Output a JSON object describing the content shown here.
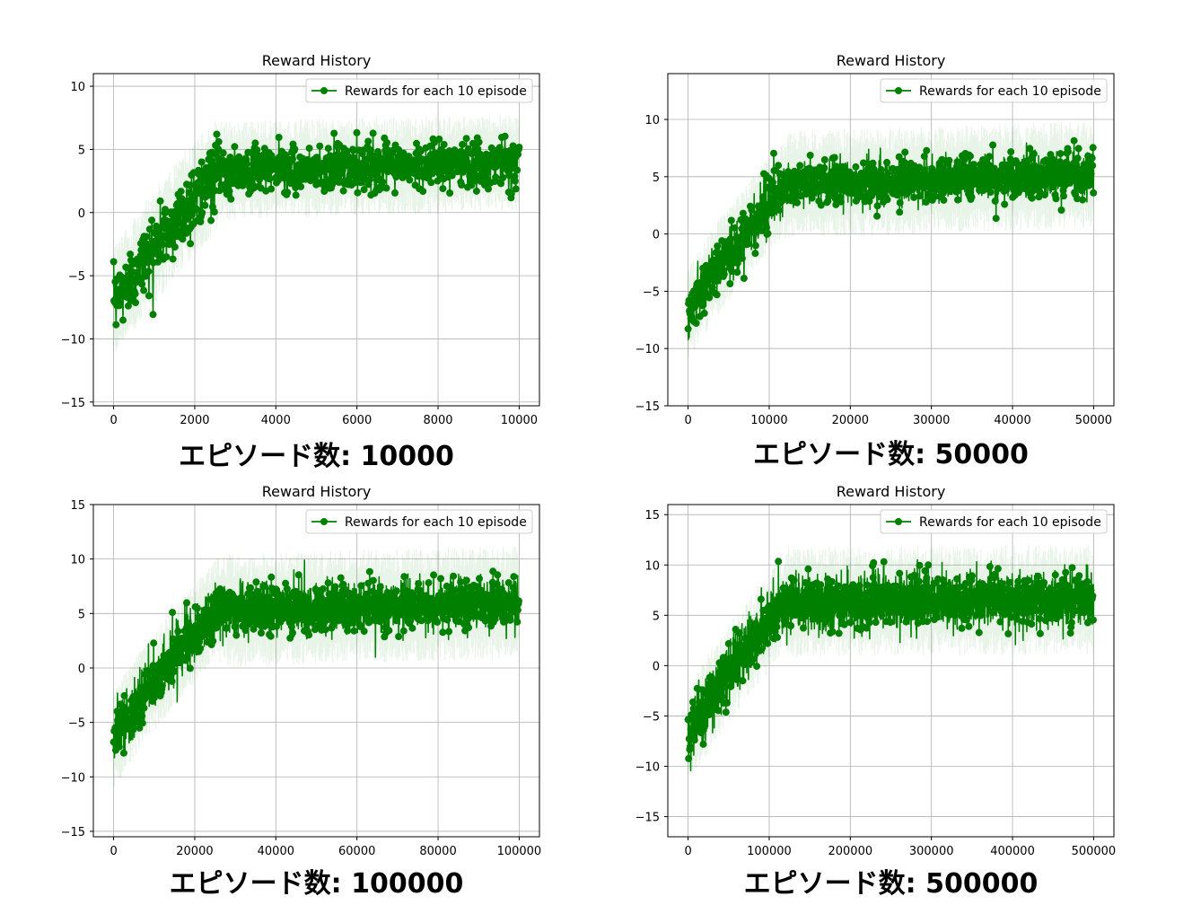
{
  "chart_data": [
    {
      "type": "line",
      "title": "Reward History",
      "caption": "エピソード数: 10000",
      "legend": "Rewards for each 10 episode",
      "legend_position": "upper-right",
      "grid": true,
      "xlim": [
        -500,
        10500
      ],
      "ylim": [
        -15.3,
        11.0
      ],
      "xticks": [
        0,
        2000,
        4000,
        6000,
        8000,
        10000
      ],
      "xtick_labels": [
        "0",
        "2000",
        "4000",
        "6000",
        "8000",
        "10000"
      ],
      "yticks": [
        -15,
        -10,
        -5,
        0,
        5,
        10
      ],
      "ytick_labels": [
        "−15",
        "−10",
        "−5",
        "0",
        "5",
        "10"
      ],
      "x_end": 10000,
      "n_points": 1000,
      "plateau_x": 2600,
      "curve": {
        "y_start": -7.5,
        "y_plateau": 3.3,
        "y_final": 4.0,
        "noise_early": 1.3,
        "noise_late": 0.9
      },
      "band": {
        "halfwidth_early": 3.5,
        "halfwidth_late": 3.0
      },
      "annotations": {
        "max_approx": 6.6,
        "min_approx": -9.2
      }
    },
    {
      "type": "line",
      "title": "Reward History",
      "caption": "エピソード数: 50000",
      "legend": "Rewards for each 10 episode",
      "legend_position": "upper-right",
      "grid": true,
      "xlim": [
        -2500,
        52500
      ],
      "ylim": [
        -15.0,
        14.0
      ],
      "xticks": [
        0,
        10000,
        20000,
        30000,
        40000,
        50000
      ],
      "xtick_labels": [
        "0",
        "10000",
        "20000",
        "30000",
        "40000",
        "50000"
      ],
      "yticks": [
        -15,
        -10,
        -5,
        0,
        5,
        10
      ],
      "ytick_labels": [
        "−15",
        "−10",
        "−5",
        "0",
        "5",
        "10"
      ],
      "x_end": 50000,
      "n_points": 1800,
      "plateau_x": 12000,
      "curve": {
        "y_start": -7.2,
        "y_plateau": 4.3,
        "y_final": 5.2,
        "noise_early": 1.2,
        "noise_late": 1.0
      },
      "band": {
        "halfwidth_early": 3.2,
        "halfwidth_late": 3.6
      },
      "annotations": {
        "max_approx": 8.8,
        "min_approx": -9.8
      }
    },
    {
      "type": "line",
      "title": "Reward History",
      "caption": "エピソード数: 100000",
      "legend": "Rewards for each 10 episode",
      "legend_position": "upper-right",
      "grid": true,
      "xlim": [
        -5000,
        105000
      ],
      "ylim": [
        -15.5,
        15.0
      ],
      "xticks": [
        0,
        20000,
        40000,
        60000,
        80000,
        100000
      ],
      "xtick_labels": [
        "0",
        "20000",
        "40000",
        "60000",
        "80000",
        "100000"
      ],
      "yticks": [
        -15,
        -10,
        -5,
        0,
        5,
        10,
        15
      ],
      "ytick_labels": [
        "−15",
        "−10",
        "−5",
        "0",
        "5",
        "10",
        "15"
      ],
      "x_end": 100000,
      "n_points": 2400,
      "plateau_x": 25000,
      "curve": {
        "y_start": -6.8,
        "y_plateau": 5.3,
        "y_final": 6.0,
        "noise_early": 1.3,
        "noise_late": 1.1
      },
      "band": {
        "halfwidth_early": 3.5,
        "halfwidth_late": 4.0
      },
      "annotations": {
        "max_approx": 9.9,
        "min_approx": -10.2
      }
    },
    {
      "type": "line",
      "title": "Reward History",
      "caption": "エピソード数: 500000",
      "legend": "Rewards for each 10 episode",
      "legend_position": "upper-right",
      "grid": true,
      "xlim": [
        -25000,
        525000
      ],
      "ylim": [
        -17.0,
        16.0
      ],
      "xticks": [
        0,
        100000,
        200000,
        300000,
        400000,
        500000
      ],
      "xtick_labels": [
        "0",
        "100000",
        "200000",
        "300000",
        "400000",
        "500000"
      ],
      "yticks": [
        -15,
        -10,
        -5,
        0,
        5,
        10,
        15
      ],
      "ytick_labels": [
        "−15",
        "−10",
        "−5",
        "0",
        "5",
        "10",
        "15"
      ],
      "x_end": 500000,
      "n_points": 3000,
      "plateau_x": 120000,
      "curve": {
        "y_start": -7.2,
        "y_plateau": 6.3,
        "y_final": 6.6,
        "noise_early": 1.4,
        "noise_late": 1.3
      },
      "band": {
        "halfwidth_early": 3.8,
        "halfwidth_late": 4.2
      },
      "annotations": {
        "max_approx": 10.8,
        "min_approx": -10.8
      }
    }
  ]
}
